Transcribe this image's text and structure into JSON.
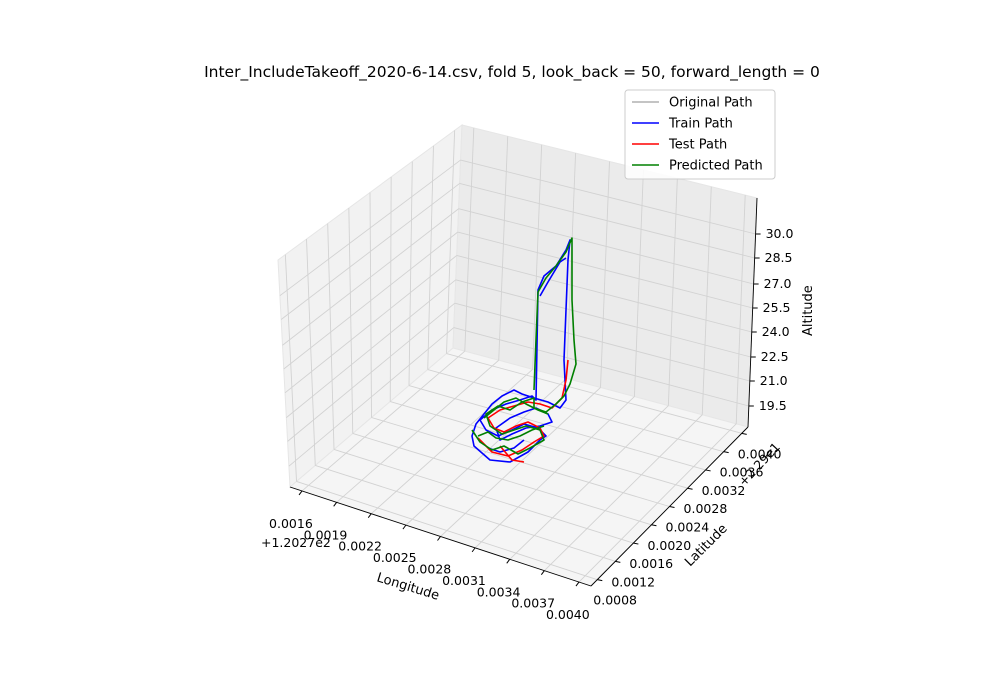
{
  "chart_data": {
    "type": "line3d",
    "title": "Inter_IncludeTakeoff_2020-6-14.csv, fold 5, look_back = 50, forward_length = 0",
    "xlabel": "Longitude",
    "ylabel": "Latitude",
    "zlabel": "Altitude",
    "x_offset_label": "+1.2027e2",
    "y_offset_label": "+2.29e1",
    "x_ticks": [
      "0.0016",
      "0.0019",
      "0.0022",
      "0.0025",
      "0.0028",
      "0.0031",
      "0.0034",
      "0.0037",
      "0.0040"
    ],
    "y_ticks": [
      "0.0008",
      "0.0012",
      "0.0016",
      "0.0020",
      "0.0024",
      "0.0028",
      "0.0032",
      "0.0036",
      "0.0040"
    ],
    "z_ticks": [
      "19.5",
      "21.0",
      "22.5",
      "24.0",
      "25.5",
      "27.0",
      "28.5",
      "30.0"
    ],
    "grid": true,
    "legend_position": "top-right",
    "legend": [
      {
        "name": "Original Path",
        "color": "#b0b0b0"
      },
      {
        "name": "Train Path",
        "color": "#0000ff"
      },
      {
        "name": "Test Path",
        "color": "#ff0000"
      },
      {
        "name": "Predicted Path",
        "color": "#008000"
      }
    ],
    "series": [
      {
        "name": "Train Path",
        "color": "#0000ff"
      },
      {
        "name": "Test Path",
        "color": "#ff0000"
      },
      {
        "name": "Predicted Path",
        "color": "#008000"
      }
    ]
  }
}
